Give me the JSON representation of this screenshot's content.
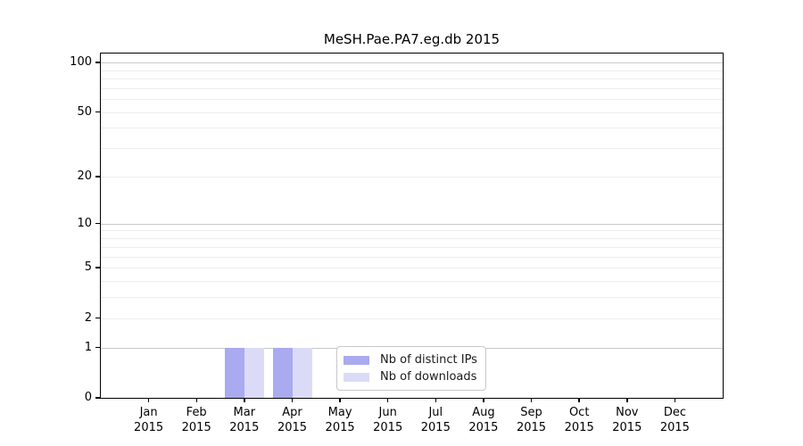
{
  "figure": {
    "title": "MeSH.Pae.PA7.eg.db 2015"
  },
  "chart_data": {
    "type": "bar",
    "title": "MeSH.Pae.PA7.eg.db 2015",
    "categories": [
      "Jan",
      "Feb",
      "Mar",
      "Apr",
      "May",
      "Jun",
      "Jul",
      "Aug",
      "Sep",
      "Oct",
      "Nov",
      "Dec"
    ],
    "category_year": "2015",
    "series": [
      {
        "name": "Nb of distinct IPs",
        "color": "#aaaaf0",
        "values": [
          0,
          0,
          1,
          1,
          0,
          0,
          0,
          0,
          0,
          0,
          0,
          0
        ]
      },
      {
        "name": "Nb of downloads",
        "color": "#dbdbf8",
        "values": [
          0,
          0,
          1,
          1,
          0,
          0,
          0,
          0,
          0,
          0,
          0,
          0
        ]
      }
    ],
    "xlabel": "",
    "ylabel": "",
    "yaxis": {
      "scale": "log1p",
      "ylim": [
        0,
        113
      ],
      "tick_values": [
        0,
        1,
        2,
        5,
        10,
        20,
        50,
        100
      ],
      "major_gridlines": [
        1,
        10,
        100
      ],
      "minor_gridlines": [
        2,
        3,
        4,
        5,
        6,
        7,
        8,
        9,
        20,
        30,
        40,
        50,
        60,
        70,
        80,
        90
      ]
    },
    "legend": {
      "position": "bottom-center",
      "entries": [
        "Nb of distinct IPs",
        "Nb of downloads"
      ]
    },
    "grid": true
  },
  "colors": {
    "bar_distinct_ips": "#aaaaf0",
    "bar_downloads": "#dbdbf8",
    "major_grid": "#c9c9c9",
    "minor_grid": "#ededed",
    "axis": "#000000",
    "legend_border": "#c8c8c8",
    "background": "#ffffff"
  }
}
